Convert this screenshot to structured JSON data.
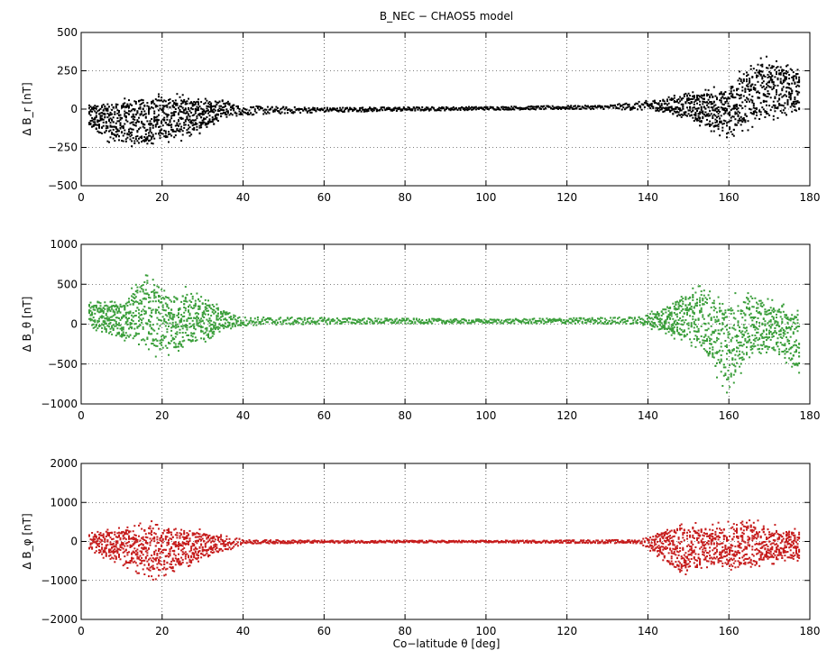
{
  "figure": {
    "title": "B_NEC − CHAOS5 model",
    "xlabel": "Co−latitude θ [deg]"
  },
  "chart_data": [
    {
      "type": "scatter",
      "title": "B_NEC − CHAOS5 model",
      "ylabel": "Δ B_r [nT]",
      "xlim": [
        0,
        180
      ],
      "ylim": [
        -500,
        500
      ],
      "xticks": [
        0,
        20,
        40,
        60,
        80,
        100,
        120,
        140,
        160,
        180
      ],
      "yticks": [
        -500,
        -250,
        0,
        250,
        500
      ],
      "grid": true,
      "color": "#000000",
      "envelope": [
        {
          "x": 2,
          "min": -150,
          "max": 50
        },
        {
          "x": 10,
          "min": -260,
          "max": 80
        },
        {
          "x": 15,
          "min": -270,
          "max": 110
        },
        {
          "x": 20,
          "min": -230,
          "max": 110
        },
        {
          "x": 27,
          "min": -200,
          "max": 90
        },
        {
          "x": 35,
          "min": -60,
          "max": 70
        },
        {
          "x": 40,
          "min": -40,
          "max": 20
        },
        {
          "x": 60,
          "min": -20,
          "max": 10
        },
        {
          "x": 100,
          "min": -5,
          "max": 15
        },
        {
          "x": 130,
          "min": 0,
          "max": 25
        },
        {
          "x": 140,
          "min": -10,
          "max": 55
        },
        {
          "x": 150,
          "min": -70,
          "max": 110
        },
        {
          "x": 160,
          "min": -210,
          "max": 170
        },
        {
          "x": 166,
          "min": -120,
          "max": 360
        },
        {
          "x": 172,
          "min": -60,
          "max": 330
        },
        {
          "x": 177,
          "min": -20,
          "max": 270
        }
      ]
    },
    {
      "type": "scatter",
      "ylabel": "Δ B_θ [nT]",
      "xlim": [
        0,
        180
      ],
      "ylim": [
        -1000,
        1000
      ],
      "xticks": [
        0,
        20,
        40,
        60,
        80,
        100,
        120,
        140,
        160,
        180
      ],
      "yticks": [
        -1000,
        -500,
        0,
        500,
        1000
      ],
      "grid": true,
      "color": "#3a9e3a",
      "envelope": [
        {
          "x": 2,
          "min": -50,
          "max": 280
        },
        {
          "x": 10,
          "min": -250,
          "max": 300
        },
        {
          "x": 16,
          "min": -350,
          "max": 700
        },
        {
          "x": 20,
          "min": -450,
          "max": 450
        },
        {
          "x": 27,
          "min": -350,
          "max": 480
        },
        {
          "x": 35,
          "min": -100,
          "max": 200
        },
        {
          "x": 40,
          "min": -20,
          "max": 90
        },
        {
          "x": 60,
          "min": 0,
          "max": 80
        },
        {
          "x": 100,
          "min": 10,
          "max": 60
        },
        {
          "x": 138,
          "min": 0,
          "max": 90
        },
        {
          "x": 145,
          "min": -150,
          "max": 280
        },
        {
          "x": 152,
          "min": -300,
          "max": 520
        },
        {
          "x": 160,
          "min": -900,
          "max": 350
        },
        {
          "x": 165,
          "min": -450,
          "max": 480
        },
        {
          "x": 172,
          "min": -420,
          "max": 280
        },
        {
          "x": 177,
          "min": -650,
          "max": 200
        }
      ]
    },
    {
      "type": "scatter",
      "ylabel": "Δ B_φ [nT]",
      "xlabel": "Co−latitude θ [deg]",
      "xlim": [
        0,
        180
      ],
      "ylim": [
        -2000,
        2000
      ],
      "xticks": [
        0,
        20,
        40,
        60,
        80,
        100,
        120,
        140,
        160,
        180
      ],
      "yticks": [
        -2000,
        -1000,
        0,
        1000,
        2000
      ],
      "grid": true,
      "color": "#c61c1c",
      "envelope": [
        {
          "x": 2,
          "min": -250,
          "max": 250
        },
        {
          "x": 10,
          "min": -650,
          "max": 400
        },
        {
          "x": 18,
          "min": -1000,
          "max": 550
        },
        {
          "x": 24,
          "min": -800,
          "max": 400
        },
        {
          "x": 30,
          "min": -500,
          "max": 300
        },
        {
          "x": 36,
          "min": -250,
          "max": 150
        },
        {
          "x": 40,
          "min": -60,
          "max": 40
        },
        {
          "x": 60,
          "min": -40,
          "max": 25
        },
        {
          "x": 100,
          "min": -30,
          "max": 20
        },
        {
          "x": 138,
          "min": -50,
          "max": 40
        },
        {
          "x": 142,
          "min": -350,
          "max": 250
        },
        {
          "x": 148,
          "min": -1000,
          "max": 550
        },
        {
          "x": 156,
          "min": -700,
          "max": 450
        },
        {
          "x": 163,
          "min": -800,
          "max": 700
        },
        {
          "x": 170,
          "min": -600,
          "max": 450
        },
        {
          "x": 177,
          "min": -550,
          "max": 350
        }
      ]
    }
  ]
}
